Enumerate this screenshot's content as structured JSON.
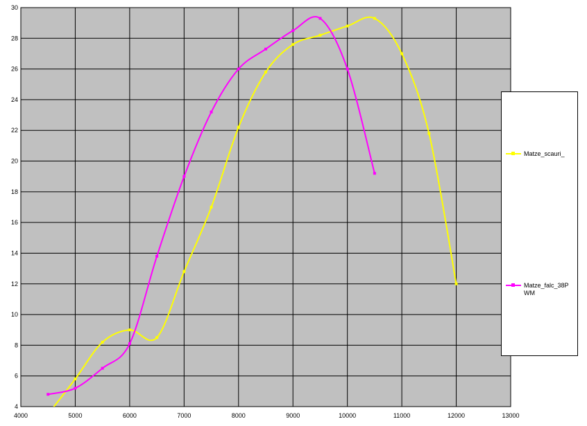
{
  "chart_data": {
    "type": "line",
    "x": [
      4500,
      5000,
      5500,
      6000,
      6500,
      7000,
      7500,
      8000,
      8500,
      9000,
      9500,
      10000,
      10500,
      11000,
      11500,
      12000
    ],
    "series": [
      {
        "name": "Matze_scauri_",
        "color": "#ffff00",
        "values": [
          3.5,
          5.8,
          8.2,
          9.0,
          8.5,
          12.8,
          17.0,
          22.2,
          25.8,
          27.6,
          28.2,
          28.8,
          29.3,
          27.0,
          21.8,
          12.0
        ]
      },
      {
        "name": "Matze_falc_38PWM",
        "color": "#ff00ff",
        "values": [
          4.8,
          5.2,
          6.5,
          8.1,
          13.8,
          19.0,
          23.2,
          26.0,
          27.3,
          28.5,
          29.3,
          26.0,
          19.2,
          null,
          null,
          null
        ]
      }
    ],
    "xlim": [
      4000,
      13000
    ],
    "xticks": [
      4000,
      5000,
      6000,
      7000,
      8000,
      9000,
      10000,
      11000,
      12000,
      13000
    ],
    "ylim": [
      4,
      30
    ],
    "yticks": [
      4,
      6,
      8,
      10,
      12,
      14,
      16,
      18,
      20,
      22,
      24,
      26,
      28,
      30
    ],
    "grid": true,
    "legend": "right"
  }
}
